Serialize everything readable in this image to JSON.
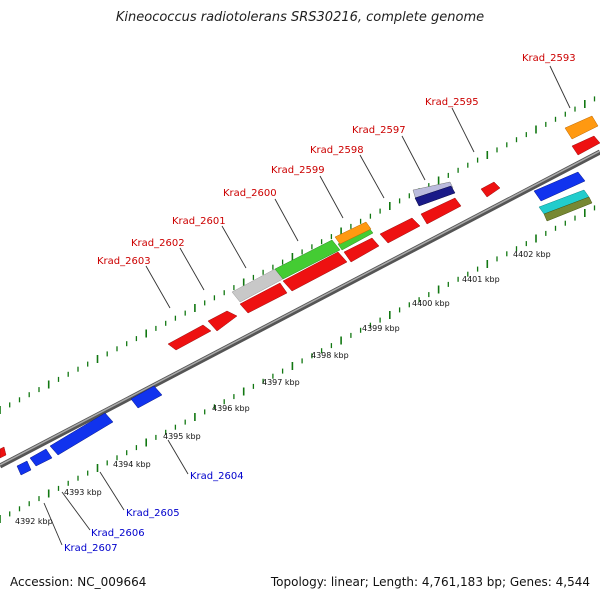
{
  "title": "Kineococcus radiotolerans SRS30216, complete genome",
  "footer": {
    "accession": "Accession: NC_009664",
    "topology": "Topology: linear; Length: 4,761,183 bp; Genes: 4,544"
  },
  "colors": {
    "red": "#ee1111",
    "blue": "#1133ee",
    "green": "#44cc33",
    "grey": "#c8c8c8",
    "orange": "#ff9911",
    "navy": "#1a1a88",
    "cyan": "#22cccc",
    "olive": "#778833",
    "tick": "#117711",
    "label_red": "#cc0000",
    "label_blue": "#0000cc"
  },
  "scale_labels": [
    "4392 kbp",
    "4393 kbp",
    "4394 kbp",
    "4395 kbp",
    "4396 kbp",
    "4397 kbp",
    "4398 kbp",
    "4399 kbp",
    "4400 kbp",
    "4401 kbp",
    "4402 kbp"
  ],
  "gene_labels": [
    "Krad_2593",
    "Krad_2595",
    "Krad_2597",
    "Krad_2598",
    "Krad_2599",
    "Krad_2600",
    "Krad_2601",
    "Krad_2602",
    "Krad_2603",
    "Krad_2604",
    "Krad_2605",
    "Krad_2606",
    "Krad_2607"
  ]
}
